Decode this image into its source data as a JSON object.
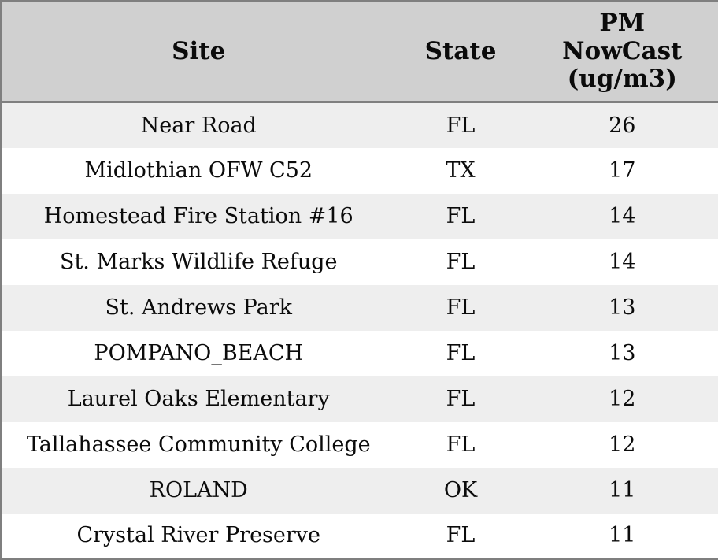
{
  "chart_data": {
    "type": "table",
    "columns": [
      "Site",
      "State",
      "PM NowCast (ug/m3)"
    ],
    "rows": [
      [
        "Near Road",
        "FL",
        26
      ],
      [
        "Midlothian OFW C52",
        "TX",
        17
      ],
      [
        "Homestead Fire Station #16",
        "FL",
        14
      ],
      [
        "St. Marks Wildlife Refuge",
        "FL",
        14
      ],
      [
        "St. Andrews Park",
        "FL",
        13
      ],
      [
        "POMPANO_BEACH",
        "FL",
        13
      ],
      [
        "Laurel Oaks Elementary",
        "FL",
        12
      ],
      [
        "Tallahassee Community College",
        "FL",
        12
      ],
      [
        "ROLAND",
        "OK",
        11
      ],
      [
        "Crystal River Preserve",
        "FL",
        11
      ]
    ],
    "layout": {
      "header_position": "top",
      "zebra_striping": true,
      "cell_alignment": "center",
      "column_gridlines": false
    }
  },
  "colors": {
    "header_bg": "#d0d0d0",
    "row_alt_bg": "#eeeeee",
    "row_bg": "#ffffff",
    "border": "#7f7f7f",
    "text": "#0b0b0b"
  }
}
